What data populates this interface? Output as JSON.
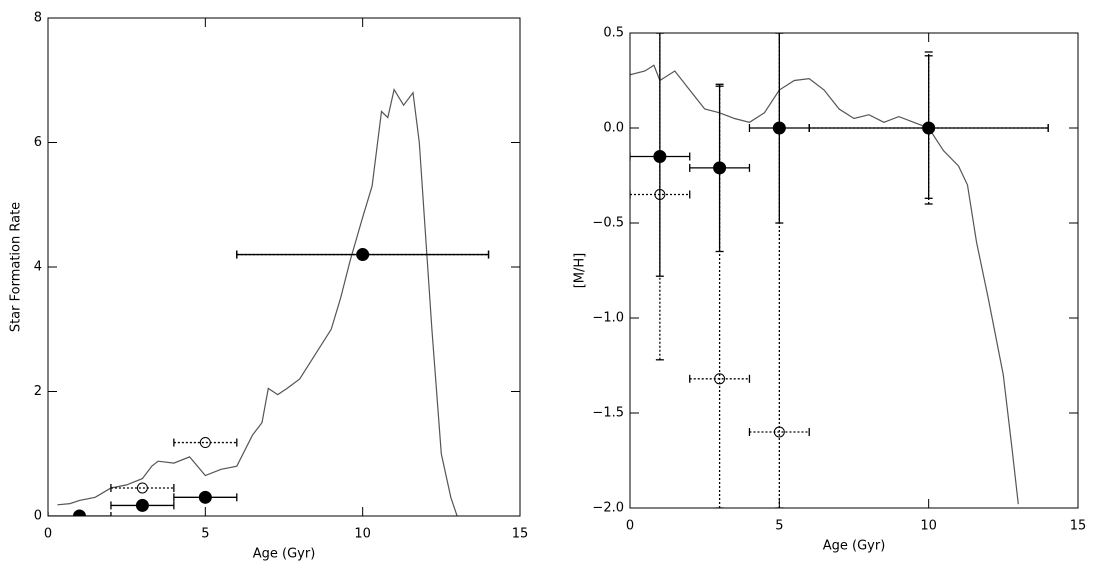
{
  "chart_data": [
    {
      "type": "scatter",
      "ylabel": "Star Formation Rate",
      "xlabel": "Age (Gyr)",
      "xlim": [
        0,
        15
      ],
      "ylim": [
        0,
        8
      ],
      "xticks": [
        0,
        5,
        10,
        15
      ],
      "yticks": [
        0,
        2,
        4,
        6,
        8
      ],
      "series": [
        {
          "kind": "line",
          "color": "#555555",
          "x": [
            0.3,
            0.7,
            1,
            1.5,
            2,
            2.5,
            3,
            3.3,
            3.5,
            4,
            4.5,
            5,
            5.5,
            6,
            6.5,
            6.8,
            7,
            7.3,
            7.6,
            8,
            8.5,
            9,
            9.3,
            9.6,
            10,
            10.3,
            10.6,
            10.8,
            11,
            11.3,
            11.6,
            11.8,
            12,
            12.2,
            12.5,
            12.8,
            13
          ],
          "values": [
            0.18,
            0.2,
            0.25,
            0.3,
            0.45,
            0.5,
            0.6,
            0.8,
            0.88,
            0.85,
            0.95,
            0.65,
            0.75,
            0.8,
            1.3,
            1.5,
            2.05,
            1.95,
            2.05,
            2.2,
            2.6,
            3.0,
            3.5,
            4.1,
            4.8,
            5.3,
            6.5,
            6.4,
            6.85,
            6.6,
            6.8,
            6.0,
            4.5,
            3.0,
            1.0,
            0.3,
            0.0
          ]
        },
        {
          "kind": "points",
          "marker": "open",
          "linestyle": "dotted",
          "color": "#000000",
          "x": [
            3,
            5,
            10
          ],
          "values": [
            0.45,
            1.18,
            4.2
          ],
          "x_low": [
            2,
            4,
            6
          ],
          "x_high": [
            4,
            6,
            14
          ]
        },
        {
          "kind": "points",
          "marker": "filled",
          "linestyle": "solid",
          "color": "#000000",
          "x": [
            1,
            3,
            5,
            10
          ],
          "values": [
            0,
            0.17,
            0.3,
            4.2
          ],
          "x_low": [
            0,
            2,
            4,
            6
          ],
          "x_high": [
            2,
            4,
            6,
            14
          ]
        }
      ]
    },
    {
      "type": "scatter",
      "ylabel": "[M/H]",
      "xlabel": "Age (Gyr)",
      "xlim": [
        0,
        15
      ],
      "ylim": [
        -2,
        0.5
      ],
      "xticks": [
        0,
        5,
        10,
        15
      ],
      "yticks": [
        {
          "value": -2,
          "label": "−2.0"
        },
        {
          "value": -1.5,
          "label": "−1.5"
        },
        {
          "value": -1,
          "label": "−1.0"
        },
        {
          "value": -0.5,
          "label": "−0.5"
        },
        {
          "value": 0,
          "label": "0.0"
        },
        0.5
      ],
      "series": [
        {
          "kind": "line",
          "color": "#555555",
          "x": [
            0,
            0.5,
            0.8,
            1,
            1.5,
            2,
            2.5,
            3,
            3.5,
            4,
            4.5,
            5,
            5.5,
            6,
            6.5,
            7,
            7.5,
            8,
            8.5,
            9,
            9.5,
            10,
            10.5,
            11,
            11.3,
            11.6,
            12,
            12.5,
            12.8,
            13
          ],
          "values": [
            0.28,
            0.3,
            0.33,
            0.25,
            0.3,
            0.2,
            0.1,
            0.08,
            0.05,
            0.03,
            0.08,
            0.2,
            0.25,
            0.26,
            0.2,
            0.1,
            0.05,
            0.07,
            0.03,
            0.06,
            0.03,
            0.0,
            -0.12,
            -0.2,
            -0.3,
            -0.6,
            -0.9,
            -1.3,
            -1.7,
            -1.98
          ]
        },
        {
          "kind": "points",
          "marker": "open",
          "linestyle": "dotted",
          "color": "#000000",
          "x": [
            1,
            3,
            5,
            10
          ],
          "values": [
            -0.35,
            -1.32,
            -1.6,
            0
          ],
          "x_low": [
            0,
            2,
            4,
            6
          ],
          "x_high": [
            2,
            4,
            6,
            14
          ],
          "y_low": [
            -1.22,
            -2,
            -2,
            -0.4
          ],
          "y_high": [
            0.5,
            0.22,
            0.5,
            0.4
          ]
        },
        {
          "kind": "points",
          "marker": "filled",
          "linestyle": "solid",
          "color": "#000000",
          "x": [
            1,
            3,
            5,
            10
          ],
          "values": [
            -0.15,
            -0.21,
            0,
            0
          ],
          "x_low": [
            0,
            2,
            4,
            6
          ],
          "x_high": [
            2,
            4,
            6,
            14
          ],
          "y_low": [
            -0.78,
            -0.65,
            -0.5,
            -0.37
          ],
          "y_high": [
            0.5,
            0.23,
            0.5,
            0.38
          ]
        }
      ]
    }
  ]
}
